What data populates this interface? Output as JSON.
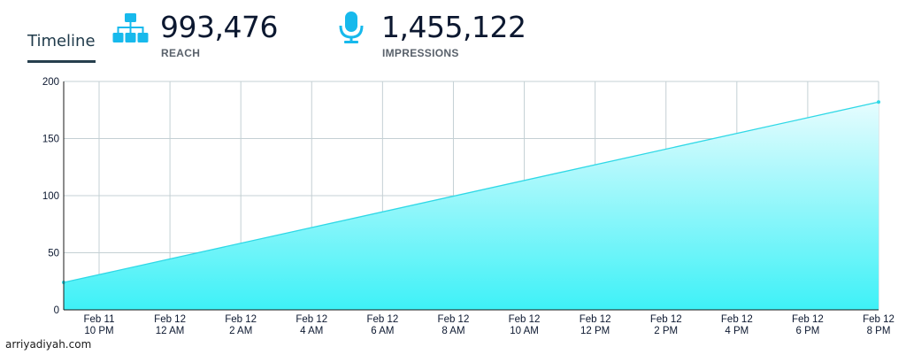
{
  "header": {
    "tab_label": "Timeline",
    "stats": [
      {
        "icon": "sitemap-icon",
        "value": "993,476",
        "label": "REACH"
      },
      {
        "icon": "microphone-icon",
        "value": "1,455,122",
        "label": "IMPRESSIONS"
      }
    ]
  },
  "colors": {
    "line": "#2fd8e6",
    "fill_top": "#e6fcfe",
    "fill_bottom": "#3ef1f7",
    "icon": "#17b9ec",
    "grid": "#c4d0d4"
  },
  "chart_data": {
    "type": "area",
    "x": [
      [
        "Feb 11",
        "10 PM"
      ],
      [
        "Feb 12",
        "12 AM"
      ],
      [
        "Feb 12",
        "2 AM"
      ],
      [
        "Feb 12",
        "4 AM"
      ],
      [
        "Feb 12",
        "6 AM"
      ],
      [
        "Feb 12",
        "8 AM"
      ],
      [
        "Feb 12",
        "10 AM"
      ],
      [
        "Feb 12",
        "12 PM"
      ],
      [
        "Feb 12",
        "2 PM"
      ],
      [
        "Feb 12",
        "4 PM"
      ],
      [
        "Feb 12",
        "6 PM"
      ],
      [
        "Feb 12",
        "8 PM"
      ]
    ],
    "points": [
      {
        "x": "Feb 11 9 PM",
        "y": 24
      },
      {
        "x": "Feb 12 8 PM",
        "y": 182
      }
    ],
    "yticks": [
      0,
      50,
      100,
      150,
      200
    ],
    "ylim": [
      0,
      200
    ],
    "grid": true,
    "xlabel": "",
    "ylabel": ""
  },
  "watermark": "arriyadiyah.com"
}
